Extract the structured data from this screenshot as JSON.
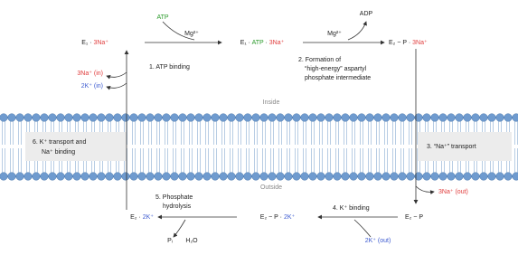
{
  "nodes": [
    {
      "parts": [
        "E₁ · ",
        "3Na⁺"
      ]
    },
    {
      "parts": [
        "E₁ · ",
        "ATP",
        " · ",
        "3Na⁺"
      ]
    },
    {
      "parts": [
        "E₂ ~ P · ",
        "3Na⁺"
      ]
    },
    {
      "parts": [
        "E₂ ~ P"
      ]
    },
    {
      "parts": [
        "E₂ ~ P · ",
        "2K⁺"
      ]
    },
    {
      "parts": [
        "E₂ · ",
        "2K⁺"
      ]
    }
  ],
  "reagents": {
    "atp": "ATP",
    "mg1": "Mg²⁺",
    "adp": "ADP",
    "mg2": "Mg²⁺",
    "pi": "Pᵢ",
    "h2o": "H₂O"
  },
  "steps": {
    "s1": "1. ATP binding",
    "s2": [
      "2. Formation of",
      "“high-energy” aspartyl",
      "phosphate intermediate"
    ],
    "s3": "3. “Na⁺” transport",
    "s4": "4. K⁺ binding",
    "s5": [
      "5. Phosphate",
      "hydrolysis"
    ],
    "s6": [
      "6. K⁺ transport and",
      "Na⁺ binding"
    ]
  },
  "ions": {
    "na_in": "3Na⁺ (in)",
    "k_in": "2K⁺ (in)",
    "na_out": "3Na⁺ (out)",
    "k_out": "2K⁺ (out)"
  },
  "sides": {
    "inside": "Inside",
    "outside": "Outside"
  }
}
